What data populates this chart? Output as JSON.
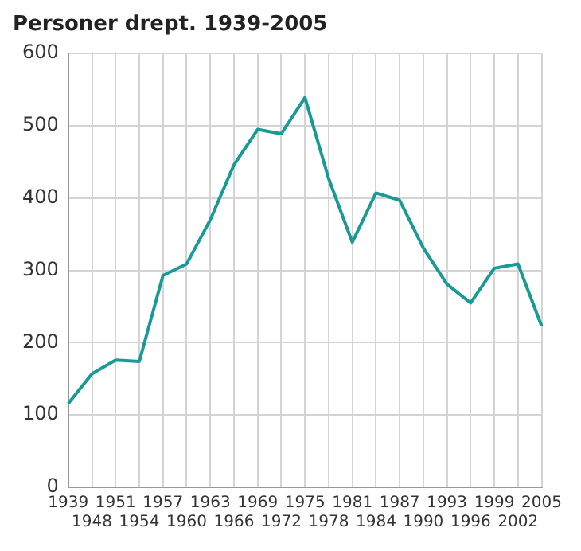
{
  "chart_data": {
    "type": "line",
    "title": "Personer drept. 1939-2005",
    "categories": [
      "1939",
      "1948",
      "1951",
      "1954",
      "1957",
      "1960",
      "1963",
      "1966",
      "1969",
      "1972",
      "1975",
      "1978",
      "1981",
      "1984",
      "1987",
      "1990",
      "1993",
      "1996",
      "1999",
      "2002",
      "2005"
    ],
    "series": [
      {
        "color": "#1a9a96",
        "values": [
          116,
          157,
          176,
          174,
          293,
          309,
          370,
          446,
          495,
          489,
          539,
          427,
          339,
          407,
          397,
          331,
          281,
          255,
          303,
          309,
          223
        ]
      }
    ],
    "ylim": [
      0,
      600
    ],
    "yticks": [
      0,
      100,
      200,
      300,
      400,
      500,
      600
    ],
    "grid": true,
    "legend": false,
    "marker": "none",
    "line_style": "solid"
  }
}
